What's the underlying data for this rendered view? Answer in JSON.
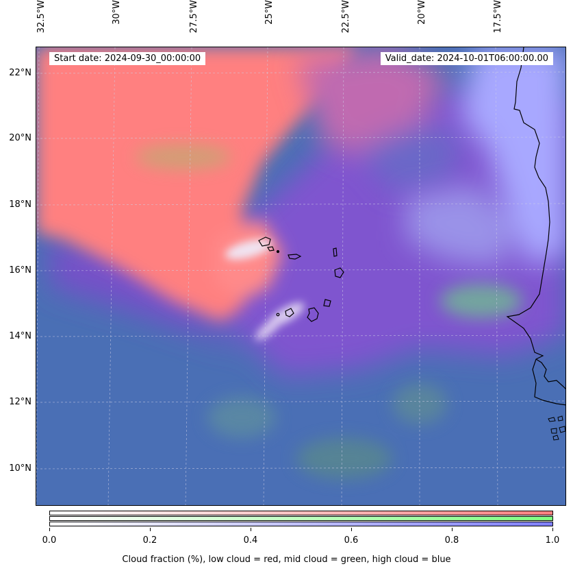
{
  "header": {
    "start_date": "Start date: 2024-09-30_00:00:00",
    "valid_date": "Valid_date: 2024-10-01T06:00:00.00"
  },
  "longitude_labels": [
    "32.5°W",
    "30°W",
    "27.5°W",
    "25°W",
    "22.5°W",
    "20°W",
    "17.5°W"
  ],
  "latitude_labels": [
    "22°N",
    "20°N",
    "18°N",
    "16°N",
    "14°N",
    "12°N",
    "10°N"
  ],
  "colorbar": {
    "ticks": [
      "0.0",
      "0.2",
      "0.4",
      "0.6",
      "0.8",
      "1.0"
    ],
    "label": "Cloud fraction (%), low cloud = red, mid cloud = green, high cloud = blue",
    "colors": {
      "low": "#ff7f7f",
      "mid": "#7fff7f",
      "high": "#7f7fff"
    }
  },
  "map_colors": {
    "low_cloud": "#ff8080",
    "mixed_cloud": "#8a5bd6",
    "high_cloud": "#a9a9ff",
    "clear_ocean": "#4a6fb5",
    "land_clear": "#9a9aff"
  }
}
